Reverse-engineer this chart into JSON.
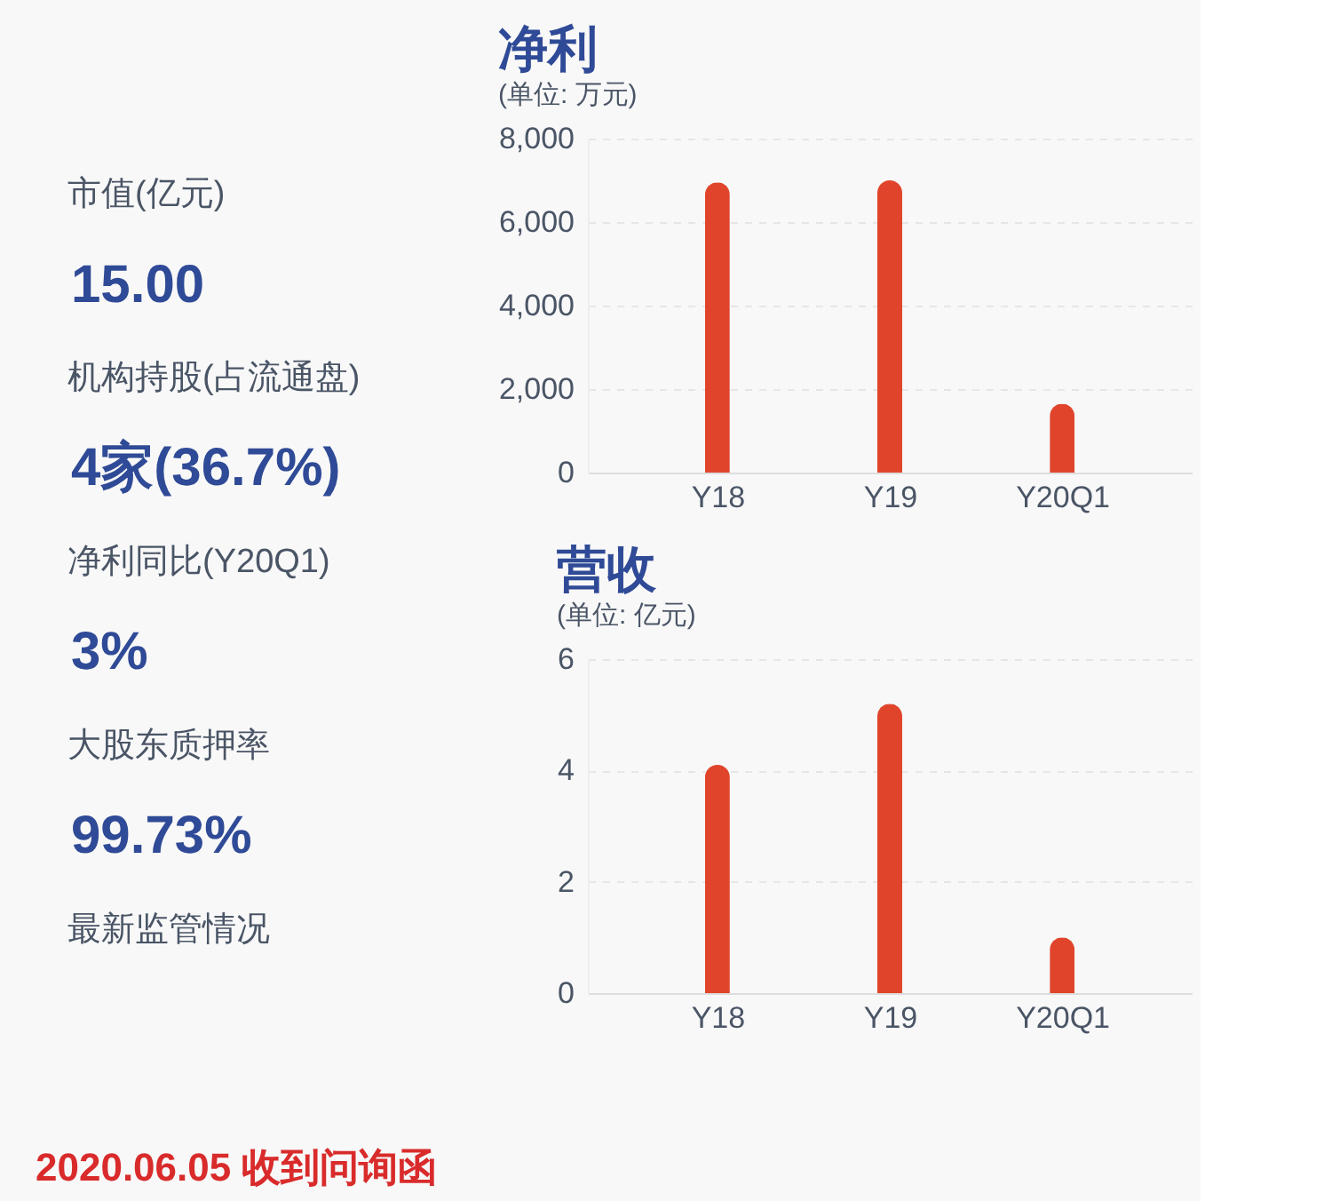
{
  "chart_data": [
    {
      "type": "other",
      "annotations": [
        "市值(亿元)",
        "15.00",
        "机构持股(占流通盘)",
        "4家(36.7%)",
        "净利同比(Y20Q1)",
        "3%",
        "大股东质押率",
        "99.73%",
        "最新监管情况",
        "2020.06.05 收到问询函"
      ]
    },
    {
      "type": "bar",
      "title": "净利",
      "subtitle": "(单位: 万元)",
      "categories": [
        "Y18",
        "Y19",
        "Y20Q1"
      ],
      "values": [
        6950,
        7000,
        1650
      ],
      "color": "#e0452c",
      "ylim": [
        0,
        8000
      ],
      "yticks": [
        0,
        {
          "value": 2000,
          "label": "2,000"
        },
        {
          "value": 4000,
          "label": "4,000"
        },
        {
          "value": 6000,
          "label": "6,000"
        },
        {
          "value": 8000,
          "label": "8,000"
        }
      ],
      "grid": "y"
    },
    {
      "type": "bar",
      "title": "营收",
      "subtitle": "(单位: 亿元)",
      "categories": [
        "Y18",
        "Y19",
        "Y20Q1"
      ],
      "values": [
        4.1,
        5.2,
        1.0
      ],
      "color": "#e0452c",
      "ylim": [
        0,
        6
      ],
      "yticks": [
        0,
        2,
        4,
        6
      ],
      "grid": "y"
    }
  ]
}
